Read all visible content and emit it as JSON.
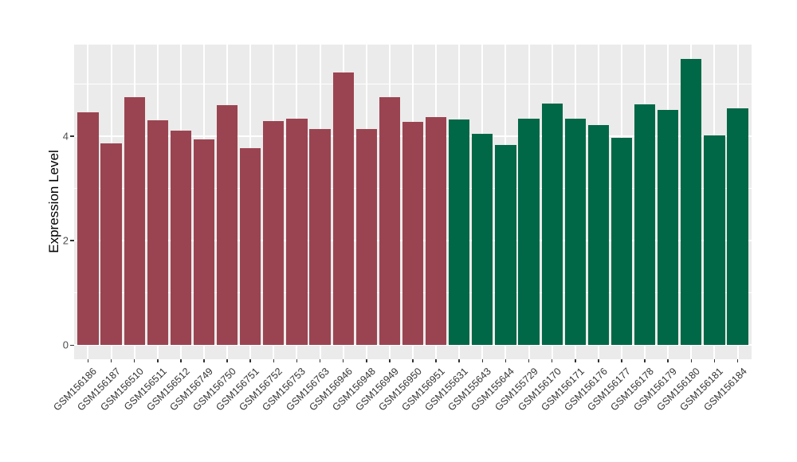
{
  "chart_data": {
    "type": "bar",
    "title": "",
    "xlabel": "",
    "ylabel": "Expression Level",
    "ylim": [
      -0.27,
      5.75
    ],
    "yticks": [
      0,
      2,
      4
    ],
    "minor_gridlines": [
      1,
      3,
      5
    ],
    "grid": true,
    "legend": false,
    "panel_bg": "#EBEBEB",
    "gridline_color": "#FFFFFF",
    "axis_text_color": "#333333",
    "categories": [
      "GSM156186",
      "GSM156187",
      "GSM156510",
      "GSM156511",
      "GSM156512",
      "GSM156749",
      "GSM156750",
      "GSM156751",
      "GSM156752",
      "GSM156753",
      "GSM156763",
      "GSM156946",
      "GSM156948",
      "GSM156949",
      "GSM156950",
      "GSM156951",
      "GSM155631",
      "GSM155643",
      "GSM155644",
      "GSM155729",
      "GSM156170",
      "GSM156171",
      "GSM156176",
      "GSM156177",
      "GSM156178",
      "GSM156179",
      "GSM156180",
      "GSM156181",
      "GSM156184"
    ],
    "values": [
      4.45,
      3.86,
      4.75,
      4.3,
      4.11,
      3.93,
      4.59,
      3.77,
      4.28,
      4.33,
      4.14,
      5.22,
      4.13,
      4.75,
      4.27,
      4.36,
      4.31,
      4.04,
      3.83,
      4.33,
      4.62,
      4.33,
      4.21,
      3.96,
      4.6,
      4.5,
      5.47,
      4.02,
      4.53
    ],
    "color_groups": [
      {
        "name": "group-1",
        "color": "#9B4451",
        "start_index": 0,
        "end_index": 15
      },
      {
        "name": "group-2",
        "color": "#016847",
        "start_index": 16,
        "end_index": 28
      }
    ]
  }
}
